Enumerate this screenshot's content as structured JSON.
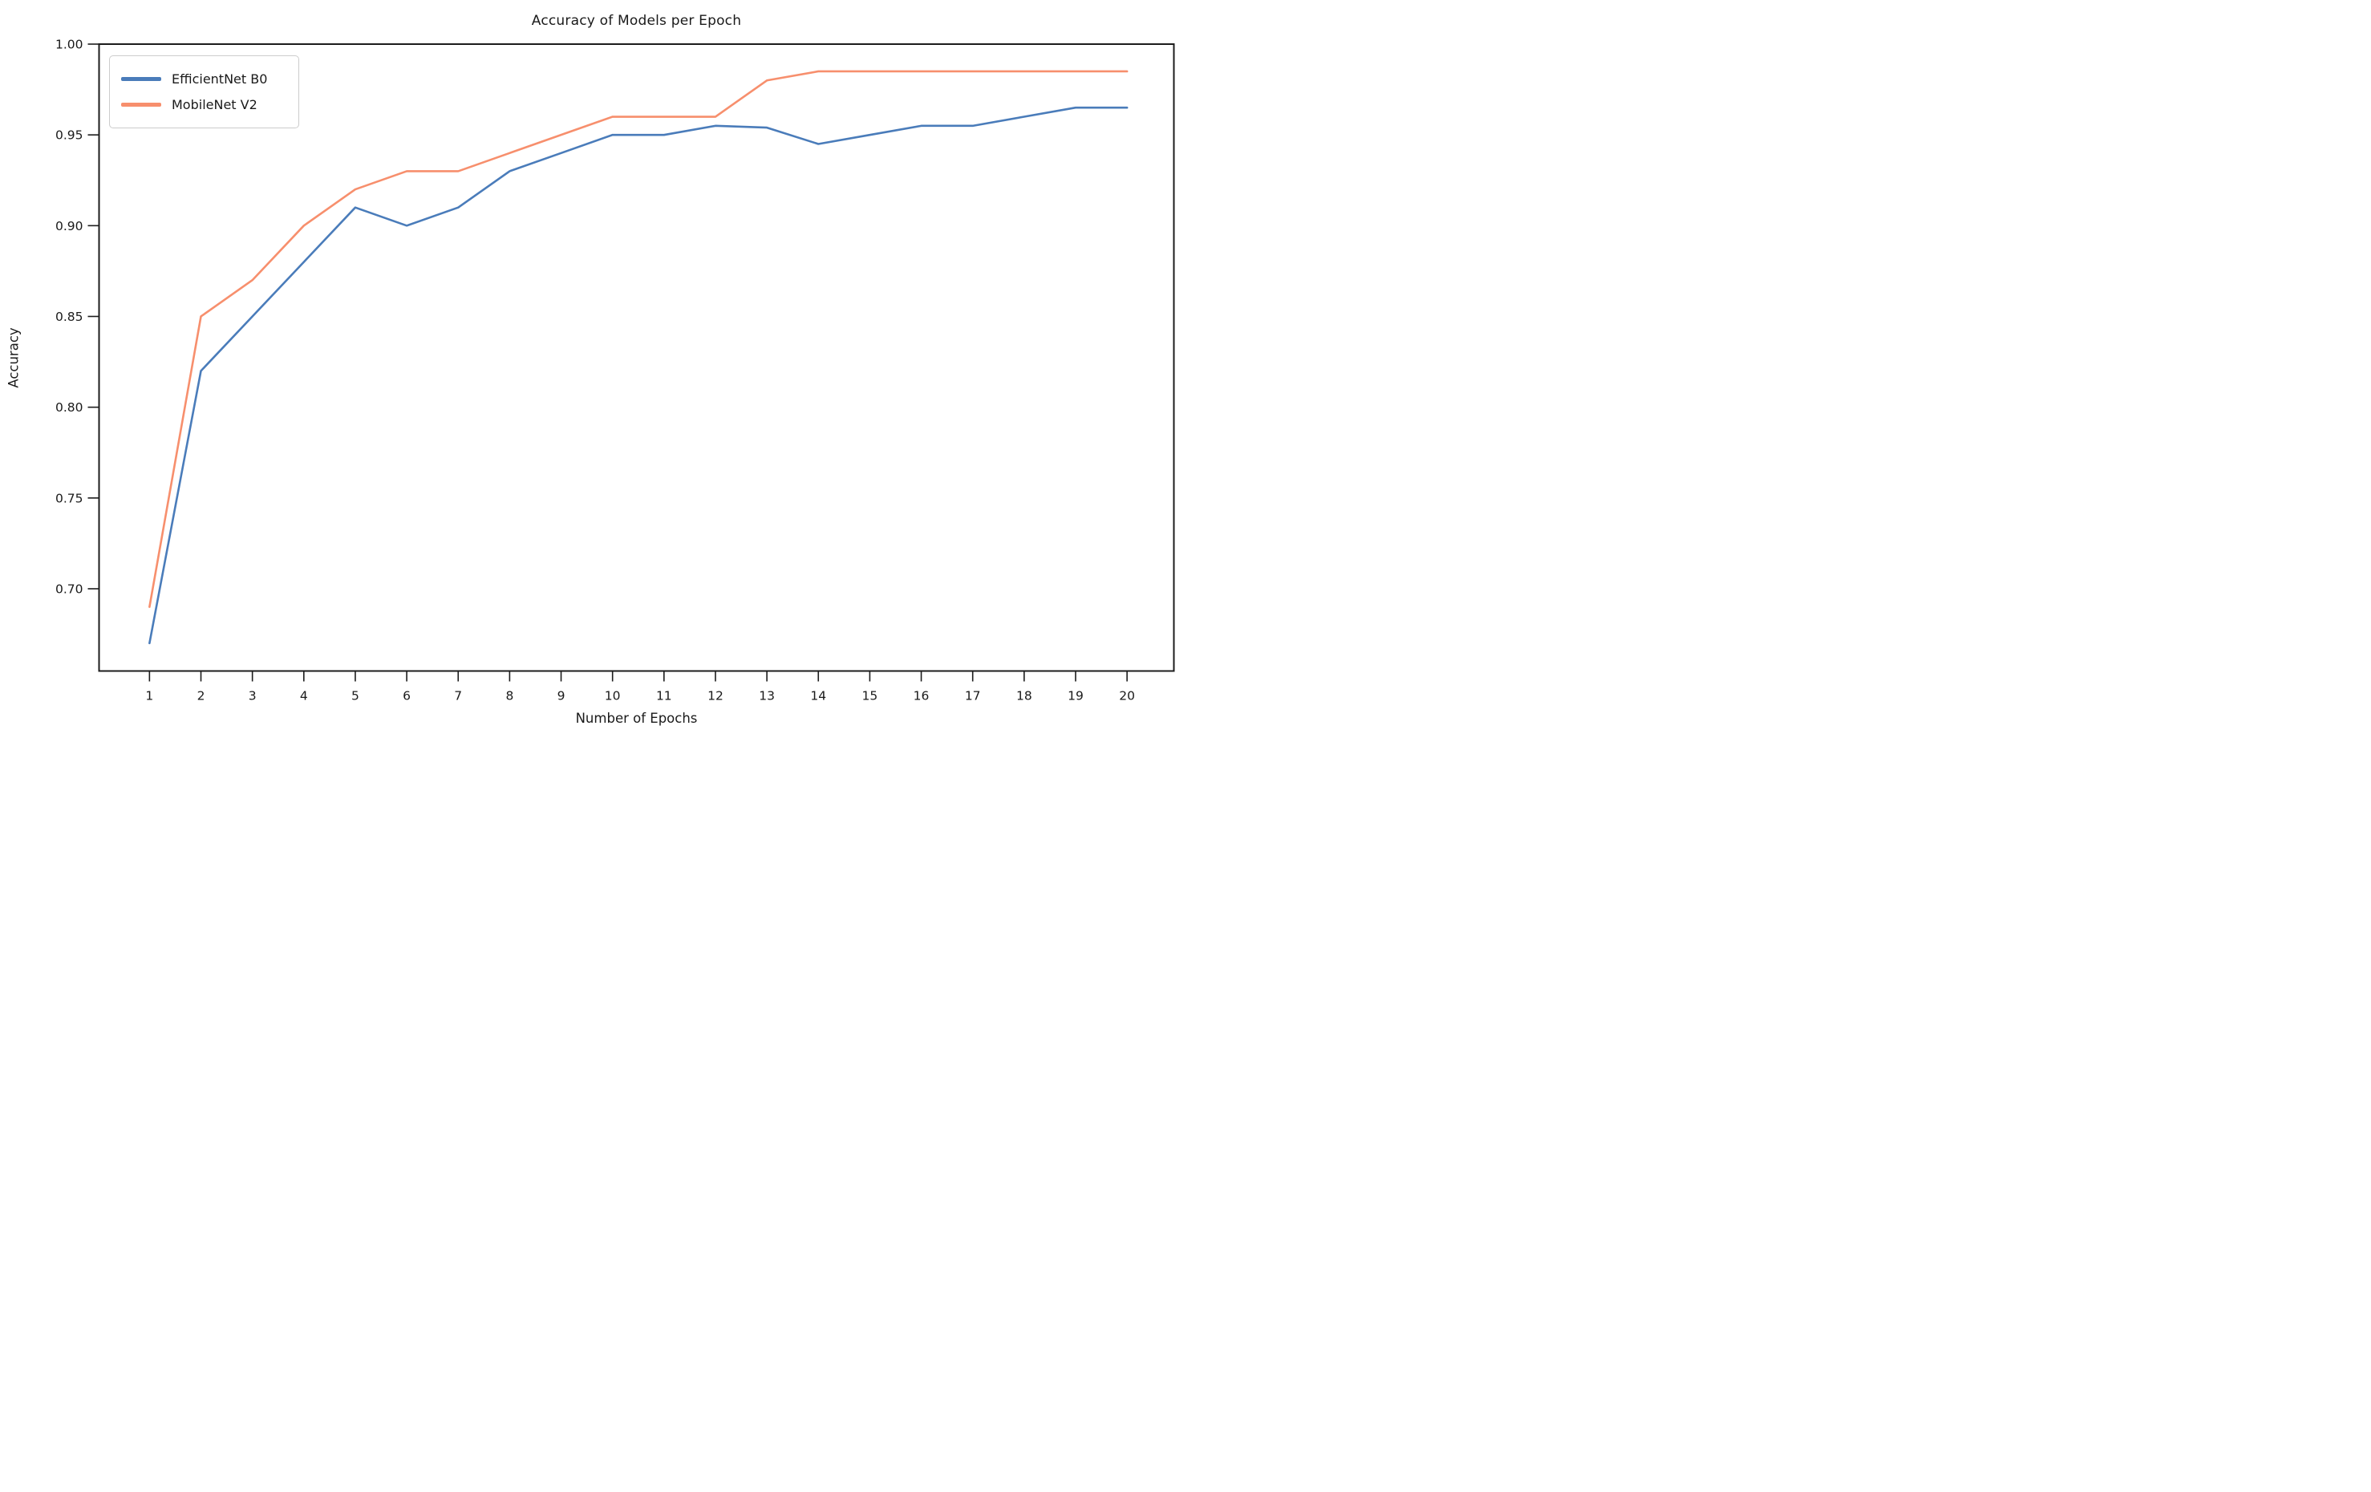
{
  "figure": {
    "background_color": "#ffffff",
    "spine_color": "#1c1c1c",
    "text_color": "#1a1a1a",
    "legend": {
      "position": "upper left",
      "entries": [
        {
          "label": "EfficientNet B0",
          "color": "#4a7cba"
        },
        {
          "label": "MobileNet V2",
          "color": "#f78f6d"
        }
      ]
    }
  },
  "chart_data": {
    "type": "line",
    "title": "Accuracy of Models per Epoch",
    "xlabel": "Number of Epochs",
    "ylabel": "Accuracy",
    "x": [
      1,
      2,
      3,
      4,
      5,
      6,
      7,
      8,
      9,
      10,
      11,
      12,
      13,
      14,
      15,
      16,
      17,
      18,
      19,
      20
    ],
    "series": [
      {
        "name": "EfficientNet B0",
        "color": "#4a7cba",
        "values": [
          0.67,
          0.82,
          0.85,
          0.88,
          0.91,
          0.9,
          0.91,
          0.93,
          0.94,
          0.95,
          0.95,
          0.955,
          0.954,
          0.945,
          0.95,
          0.955,
          0.955,
          0.96,
          0.965,
          0.965
        ]
      },
      {
        "name": "MobileNet V2",
        "color": "#f78f6d",
        "values": [
          0.69,
          0.85,
          0.87,
          0.9,
          0.92,
          0.93,
          0.93,
          0.94,
          0.95,
          0.96,
          0.96,
          0.96,
          0.98,
          0.985,
          0.985,
          0.985,
          0.985,
          0.985,
          0.985,
          0.985
        ]
      }
    ],
    "xticks": [
      1,
      2,
      3,
      4,
      5,
      6,
      7,
      8,
      9,
      10,
      11,
      12,
      13,
      14,
      15,
      16,
      17,
      18,
      19,
      20
    ],
    "xtick_labels": [
      "1",
      "2",
      "3",
      "4",
      "5",
      "6",
      "7",
      "8",
      "9",
      "10",
      "11",
      "12",
      "13",
      "14",
      "15",
      "16",
      "17",
      "18",
      "19",
      "20"
    ],
    "yticks": [
      0.7,
      0.75,
      0.8,
      0.85,
      0.9,
      0.95,
      1.0
    ],
    "ytick_labels": [
      "0.70",
      "0.75",
      "0.80",
      "0.85",
      "0.90",
      "0.95",
      "1.00"
    ],
    "xlim": [
      0.02,
      20.91
    ],
    "ylim": [
      0.6547,
      1.0
    ],
    "grid": false,
    "legend_position": "upper left"
  }
}
